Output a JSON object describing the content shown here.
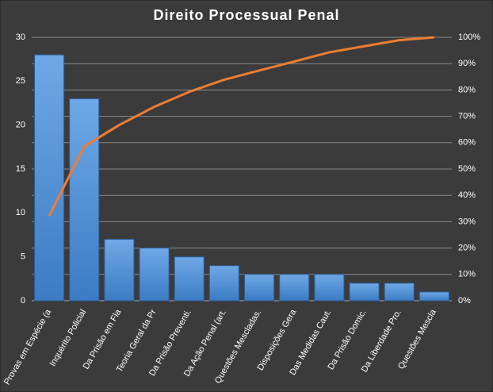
{
  "chart_data": {
    "type": "pareto",
    "title": "Direito  Processual  Penal",
    "categories": [
      "Provas em Espécie (a",
      "Inquérito Policial",
      "Da Prisão em Fla",
      "Teoria Geral da Pr",
      "Da Prisão Preventi.",
      "Da Ação Penal (art.",
      "Questões Mescladas.",
      "Disposições Gera",
      "Das Medidas Caut.",
      "Da Prisão Domic.",
      "Da Liberdade Pro.",
      "Questões Mescla"
    ],
    "series": [
      {
        "color": "#4f8fd6",
        "values": [
          28,
          23,
          7,
          6,
          5,
          4,
          3,
          3,
          3,
          2,
          2,
          1
        ]
      },
      {
        "color": "#ed7d31",
        "axis": "y2",
        "values": [
          32.2,
          58.6,
          66.7,
          73.6,
          79.3,
          83.9,
          87.4,
          90.8,
          94.3,
          96.6,
          98.9,
          100
        ]
      }
    ],
    "ylim": [
      0,
      30
    ],
    "yticks": [
      0,
      5,
      10,
      15,
      20,
      25,
      30
    ],
    "y2lim": [
      0,
      100
    ],
    "y2ticks": [
      {
        "value": 0,
        "label": "0%"
      },
      {
        "value": 10,
        "label": "10%"
      },
      {
        "value": 20,
        "label": "20%"
      },
      {
        "value": 30,
        "label": "30%"
      },
      {
        "value": 40,
        "label": "40%"
      },
      {
        "value": 50,
        "label": "50%"
      },
      {
        "value": 60,
        "label": "60%"
      },
      {
        "value": 70,
        "label": "70%"
      },
      {
        "value": 80,
        "label": "80%"
      },
      {
        "value": 90,
        "label": "90%"
      },
      {
        "value": 100,
        "label": "100%"
      }
    ],
    "grid": true
  }
}
